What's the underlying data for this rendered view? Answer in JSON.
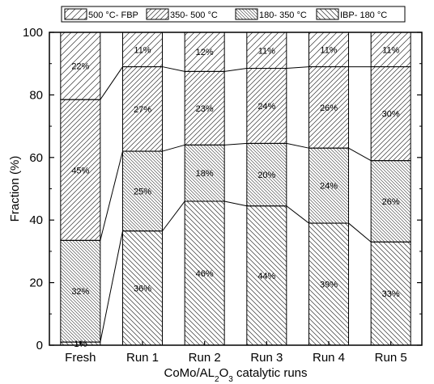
{
  "chart_data": {
    "type": "bar",
    "stacked": true,
    "categories": [
      "Fresh",
      "Run 1",
      "Run 2",
      "Run 3",
      "Run 4",
      "Run 5"
    ],
    "series": [
      {
        "name": "IBP- 180 °C",
        "values": [
          1,
          36.5,
          46,
          44.5,
          39,
          33
        ],
        "labels": [
          "1%",
          "36%",
          "46%",
          "44%",
          "39%",
          "33%"
        ],
        "pattern": "backslash"
      },
      {
        "name": "180- 350 °C",
        "values": [
          32.5,
          25.5,
          18,
          20,
          24,
          26
        ],
        "labels": [
          "32%",
          "25%",
          "18%",
          "20%",
          "24%",
          "26%"
        ],
        "pattern": "backslash-dense"
      },
      {
        "name": "350- 500 °C",
        "values": [
          45,
          27,
          23.5,
          24,
          26,
          30
        ],
        "labels": [
          "45%",
          "27%",
          "23%",
          "24%",
          "26%",
          "30%"
        ],
        "pattern": "slash"
      },
      {
        "name": "500 °C- FBP",
        "values": [
          21.5,
          11,
          12.5,
          11.5,
          11,
          11
        ],
        "labels": [
          "22%",
          "11%",
          "12%",
          "11%",
          "11%",
          "11%"
        ],
        "pattern": "slash-sparse"
      }
    ],
    "xlabel_parts": [
      {
        "text": "CoMo/AL",
        "sub": false
      },
      {
        "text": "2",
        "sub": true
      },
      {
        "text": "O",
        "sub": false
      },
      {
        "text": "3",
        "sub": true
      },
      {
        "text": " catalytic runs",
        "sub": false
      }
    ],
    "ylabel": "Fraction (%)",
    "ylim": [
      0,
      100
    ],
    "yticks": [
      0,
      20,
      40,
      60,
      80,
      100
    ],
    "legend_position": "top",
    "legend_order": [
      3,
      2,
      1,
      0
    ],
    "connector_lines": true,
    "grid": false,
    "bar_color": "#ffffff",
    "stroke_color": "#000000"
  }
}
